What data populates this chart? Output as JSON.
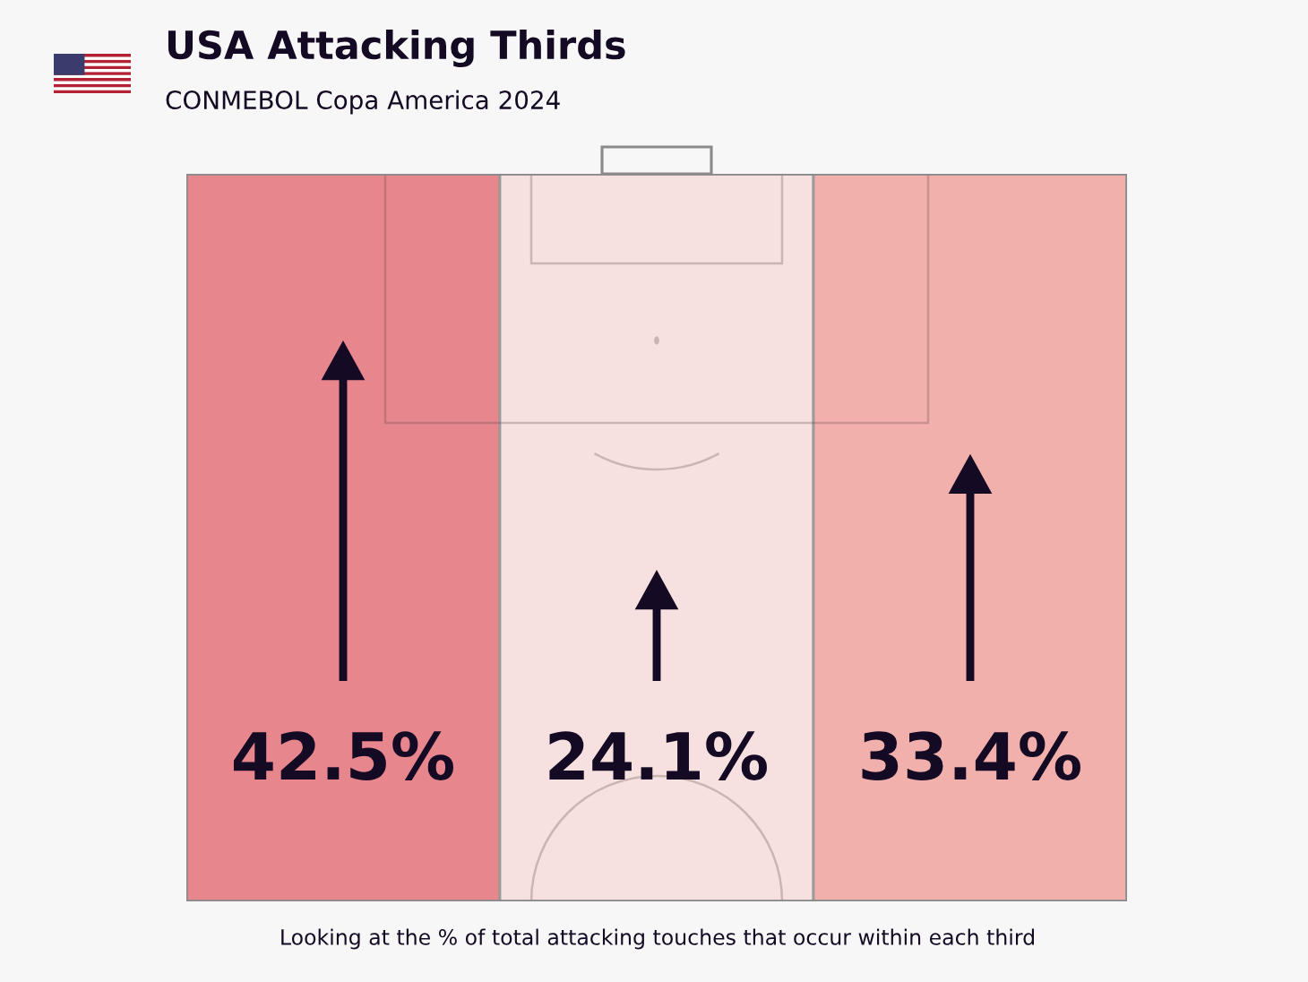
{
  "chart_data": {
    "type": "other",
    "title": "USA Attacking Thirds",
    "subtitle": "CONMEBOL Copa America 2024",
    "categories": [
      null,
      null,
      null
    ],
    "values": [
      42.5,
      24.1,
      33.4
    ],
    "value_labels": [
      "42.5%",
      "24.1%",
      "33.4%"
    ],
    "colors": [
      "#e8868d",
      "#f7e1e0",
      "#f2b0ac"
    ],
    "annotations": [
      "Looking at the % of total attacking touches that occur within each third"
    ]
  }
}
